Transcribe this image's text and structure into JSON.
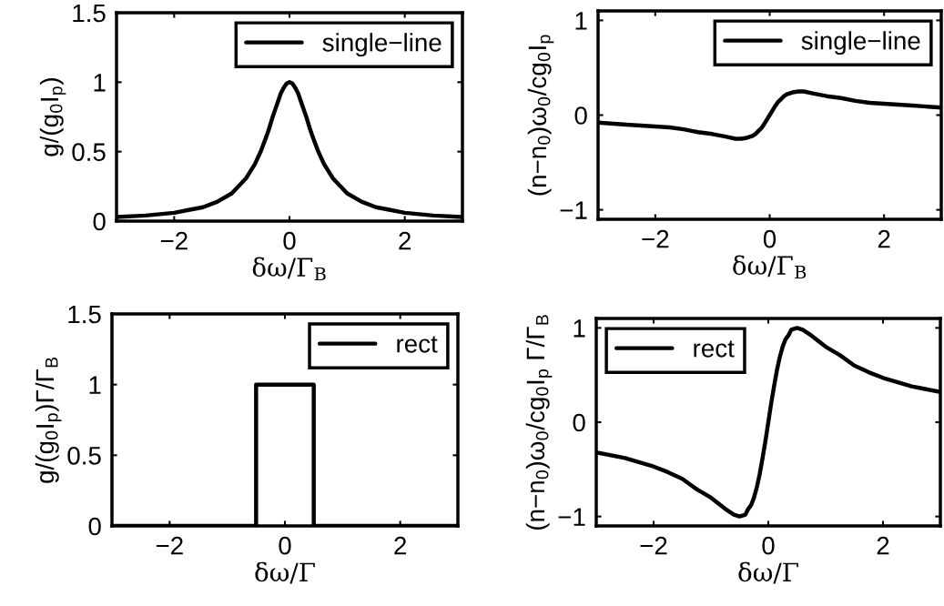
{
  "chart_data": [
    {
      "type": "line",
      "xlabel": "δω/Γ$_{B}$",
      "ylabel": "g/(g$_{0}$I$_{p}$)",
      "xlim": [
        -3,
        3
      ],
      "ylim": [
        0,
        1.5
      ],
      "xticks": [
        -2,
        0,
        2
      ],
      "yticks": [
        0,
        0.5,
        1,
        1.5
      ],
      "legend": "top right",
      "series": [
        {
          "name": "single−line",
          "color": "#000000",
          "x": [
            -3,
            -2.5,
            -2,
            -1.75,
            -1.5,
            -1.25,
            -1,
            -0.75,
            -0.6,
            -0.5,
            -0.4,
            -0.35,
            -0.3,
            -0.25,
            -0.2,
            -0.15,
            -0.1,
            -0.05,
            0,
            0.05,
            0.1,
            0.15,
            0.2,
            0.25,
            0.3,
            0.35,
            0.4,
            0.5,
            0.6,
            0.75,
            1,
            1.25,
            1.5,
            1.75,
            2,
            2.5,
            3
          ],
          "values": [
            0.03,
            0.04,
            0.06,
            0.08,
            0.1,
            0.14,
            0.2,
            0.31,
            0.41,
            0.5,
            0.61,
            0.67,
            0.74,
            0.8,
            0.86,
            0.92,
            0.96,
            0.99,
            1,
            0.99,
            0.96,
            0.92,
            0.86,
            0.8,
            0.74,
            0.67,
            0.61,
            0.5,
            0.41,
            0.31,
            0.2,
            0.14,
            0.1,
            0.08,
            0.06,
            0.04,
            0.03
          ]
        }
      ]
    },
    {
      "type": "line",
      "xlabel": "δω/Γ$_{B}$",
      "ylabel": "(n−n$_{0}$)ω$_{0}$/cg$_{0}$I$_{p}$",
      "xlim": [
        -3,
        3
      ],
      "ylim": [
        -1.1,
        1.1
      ],
      "xticks": [
        -2,
        0,
        2
      ],
      "yticks": [
        -1,
        0,
        1
      ],
      "legend": "top right",
      "series": [
        {
          "name": "single−line",
          "color": "#000000",
          "x": [
            -3,
            -2.5,
            -2,
            -1.75,
            -1.5,
            -1.25,
            -1,
            -0.75,
            -0.6,
            -0.5,
            -0.4,
            -0.35,
            -0.3,
            -0.25,
            -0.2,
            -0.15,
            -0.1,
            -0.05,
            0,
            0.05,
            0.1,
            0.15,
            0.2,
            0.25,
            0.3,
            0.35,
            0.4,
            0.5,
            0.6,
            0.75,
            1,
            1.25,
            1.5,
            1.75,
            2,
            2.5,
            3
          ],
          "values": [
            -0.08,
            -0.1,
            -0.12,
            -0.13,
            -0.15,
            -0.18,
            -0.2,
            -0.23,
            -0.25,
            -0.25,
            -0.24,
            -0.23,
            -0.22,
            -0.2,
            -0.17,
            -0.14,
            -0.1,
            -0.05,
            0,
            0.05,
            0.1,
            0.14,
            0.17,
            0.2,
            0.22,
            0.23,
            0.24,
            0.25,
            0.25,
            0.23,
            0.2,
            0.18,
            0.15,
            0.13,
            0.12,
            0.1,
            0.08
          ]
        }
      ]
    },
    {
      "type": "line",
      "xlabel": "δω/Γ",
      "ylabel": "g/(g$_{0}$I$_{p}$)Γ/Γ$_{B}$",
      "xlim": [
        -3,
        3
      ],
      "ylim": [
        0,
        1.5
      ],
      "xticks": [
        -2,
        0,
        2
      ],
      "yticks": [
        0,
        0.5,
        1,
        1.5
      ],
      "legend": "top right",
      "series": [
        {
          "name": "rect",
          "color": "#000000",
          "x": [
            -3,
            -0.5,
            -0.5,
            0.5,
            0.5,
            3
          ],
          "values": [
            0,
            0,
            1,
            1,
            0,
            0
          ]
        }
      ]
    },
    {
      "type": "line",
      "xlabel": "δω/Γ",
      "ylabel": "(n−n$_{0}$)ω$_{0}$/cg$_{0}$I$_{p}$ Γ/Γ$_{B}$",
      "xlim": [
        -3,
        3
      ],
      "ylim": [
        -1.1,
        1.1
      ],
      "xticks": [
        -2,
        0,
        2
      ],
      "yticks": [
        -1,
        0,
        1
      ],
      "legend": "top left",
      "series": [
        {
          "name": "rect",
          "color": "#000000",
          "x": [
            -3,
            -2.5,
            -2,
            -1.75,
            -1.5,
            -1.25,
            -1,
            -0.75,
            -0.6,
            -0.5,
            -0.4,
            -0.35,
            -0.3,
            -0.25,
            -0.2,
            -0.15,
            -0.1,
            -0.05,
            0,
            0.05,
            0.1,
            0.15,
            0.2,
            0.25,
            0.3,
            0.35,
            0.4,
            0.5,
            0.6,
            0.75,
            1,
            1.25,
            1.5,
            1.75,
            2,
            2.5,
            3
          ],
          "values": [
            -0.32,
            -0.38,
            -0.47,
            -0.53,
            -0.6,
            -0.71,
            -0.8,
            -0.92,
            -0.98,
            -1,
            -0.98,
            -0.92,
            -0.88,
            -0.8,
            -0.69,
            -0.55,
            -0.38,
            -0.2,
            0,
            0.2,
            0.38,
            0.55,
            0.69,
            0.8,
            0.88,
            0.92,
            0.98,
            1,
            0.98,
            0.92,
            0.8,
            0.71,
            0.6,
            0.53,
            0.47,
            0.38,
            0.32
          ]
        }
      ]
    }
  ]
}
